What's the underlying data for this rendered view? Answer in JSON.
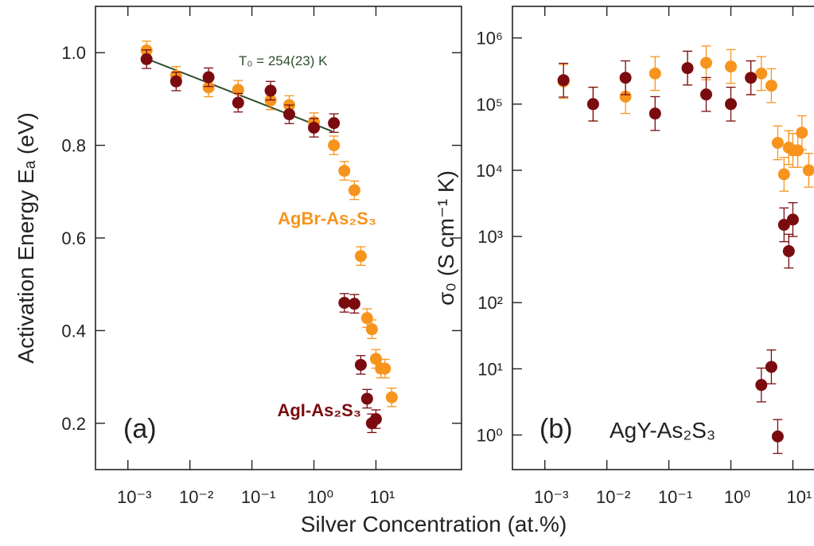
{
  "xlabel": "Silver Concentration (at.%)",
  "chart_data": [
    {
      "type": "scatter",
      "xlog": true,
      "ylog": false,
      "ylabel": "Activation Energy Eₐ (eV)",
      "xlim": [
        0.0003,
        240
      ],
      "ylim": [
        0.1,
        1.1
      ],
      "xticks": [
        {
          "value": 0.001,
          "label": "10⁻³"
        },
        {
          "value": 0.01,
          "label": "10⁻²"
        },
        {
          "value": 0.1,
          "label": "10⁻¹"
        },
        {
          "value": 1,
          "label": "10⁰"
        },
        {
          "value": 10,
          "label": "10¹"
        }
      ],
      "yticks": [
        0.2,
        0.4,
        0.6,
        0.8,
        {
          "value": 1,
          "label": "1.0"
        }
      ],
      "annotations": [
        {
          "text": "(a)"
        },
        {
          "text": "T₀ = 254(23) K",
          "color": "#2e4d2e"
        }
      ],
      "fit_line": {
        "x": [
          0.002,
          2
        ],
        "values": [
          0.987,
          0.83
        ],
        "color": "#2e4d2e"
      },
      "series": [
        {
          "name": "AgBr-As₂S₃",
          "color": "#f7941d",
          "error": 0.02,
          "x": [
            0.002,
            0.006,
            0.02,
            0.06,
            0.2,
            0.4,
            1.0,
            2.1,
            3.1,
            4.5,
            5.7,
            7.2,
            8.6,
            10,
            12,
            14,
            18
          ],
          "values": [
            1.005,
            0.95,
            0.925,
            0.92,
            0.897,
            0.887,
            0.85,
            0.8,
            0.745,
            0.703,
            0.561,
            0.427,
            0.403,
            0.339,
            0.318,
            0.318,
            0.256
          ]
        },
        {
          "name": "AgI-As₂S₃",
          "color": "#7a0c10",
          "error": 0.02,
          "x": [
            0.002,
            0.006,
            0.02,
            0.06,
            0.2,
            0.4,
            1.0,
            2.1,
            3.1,
            4.5,
            5.7,
            7.2,
            8.6,
            10
          ],
          "values": [
            0.986,
            0.938,
            0.947,
            0.892,
            0.918,
            0.867,
            0.838,
            0.848,
            0.46,
            0.458,
            0.326,
            0.253,
            0.2,
            0.209
          ]
        }
      ]
    },
    {
      "type": "scatter",
      "xlog": true,
      "ylog": true,
      "ylabel": "σ₀ (S cm⁻¹ K)",
      "xlim": [
        0.0003,
        240
      ],
      "ylim": [
        0.3,
        3000000
      ],
      "xticks": [
        {
          "value": 0.001,
          "label": "10⁻³"
        },
        {
          "value": 0.01,
          "label": "10⁻²"
        },
        {
          "value": 0.1,
          "label": "10⁻¹"
        },
        {
          "value": 1,
          "label": "10⁰"
        },
        {
          "value": 10,
          "label": "10¹"
        }
      ],
      "yticks": [
        {
          "value": 1,
          "label": "10⁰"
        },
        {
          "value": 10,
          "label": "10¹"
        },
        {
          "value": 100,
          "label": "10²"
        },
        {
          "value": 1000,
          "label": "10³"
        },
        {
          "value": 10000,
          "label": "10⁴"
        },
        {
          "value": 100000,
          "label": "10⁵"
        },
        {
          "value": 1000000,
          "label": "10⁶"
        }
      ],
      "annotations": [
        {
          "text": "(b)"
        },
        {
          "text": "AgY-As₂S₃"
        }
      ],
      "series": [
        {
          "color": "#f7941d",
          "error_factor": 1.8,
          "x": [
            0.002,
            0.006,
            0.02,
            0.06,
            0.2,
            0.4,
            1.0,
            2.1,
            3.1,
            4.5,
            5.7,
            7.2,
            8.6,
            10,
            12,
            14,
            18
          ],
          "values": [
            220000,
            100000,
            130000,
            290000,
            350000,
            420000,
            370000,
            250000,
            290000,
            190000,
            26000,
            8700,
            22000,
            20000,
            20000,
            37000,
            10000
          ]
        },
        {
          "color": "#7a0c10",
          "error_factor": 1.8,
          "x": [
            0.002,
            0.006,
            0.02,
            0.06,
            0.2,
            0.4,
            1.0,
            2.1,
            3.1,
            4.5,
            5.7,
            7.2,
            8.6,
            10
          ],
          "values": [
            230000,
            100000,
            250000,
            72000,
            350000,
            140000,
            100000,
            250000,
            5.7,
            10.7,
            0.95,
            1500,
            600,
            1800
          ]
        }
      ]
    }
  ]
}
